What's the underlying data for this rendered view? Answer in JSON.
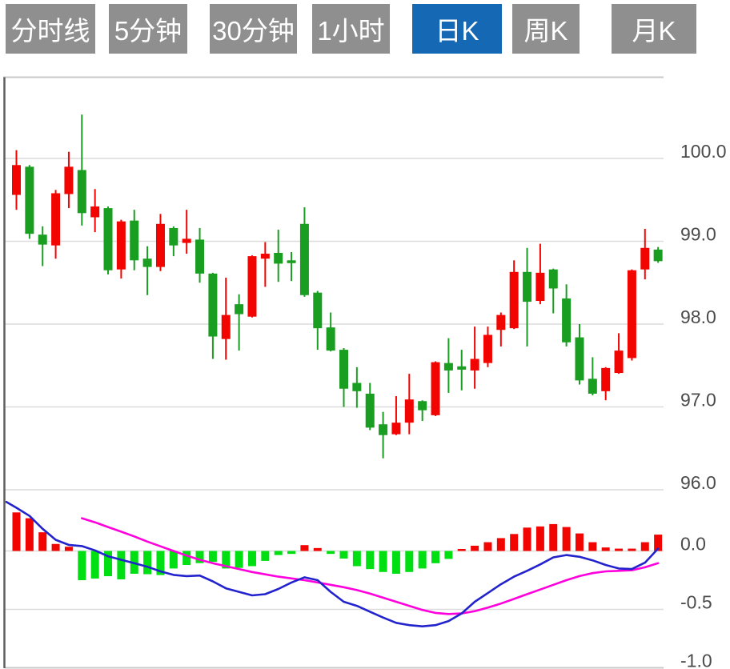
{
  "toolbar": {
    "tabs": [
      {
        "label": "分时线",
        "active": false
      },
      {
        "label": "5分钟",
        "active": false
      },
      {
        "label": "30分钟",
        "active": false
      },
      {
        "label": "1小时",
        "active": false
      },
      {
        "label": "日K",
        "active": true
      },
      {
        "label": "周K",
        "active": false
      },
      {
        "label": "月K",
        "active": false
      }
    ]
  },
  "colors": {
    "up_red": "#f20400",
    "down_green": "#1a9e21",
    "macd_green": "#00df12",
    "dif_blue": "#2323cd",
    "dea_magenta": "#ff00dd",
    "grid": "#dcdcdc",
    "border": "#c9c9c9",
    "spine": "#5e5e5e",
    "axis_label": "#4b4b4b",
    "tab_gray": "#8f8f8f",
    "tab_active_blue": "#1568b3"
  },
  "chart_data": {
    "type": "candlestick+macd",
    "title": "",
    "legend_position": "none",
    "grid": true,
    "price_axis": {
      "side": "right",
      "ticks": [
        100.0,
        99.0,
        98.0,
        97.0,
        96.0
      ],
      "labels": [
        "100.0",
        "99.0",
        "98.0",
        "97.0",
        "96.0"
      ],
      "range": [
        95.9,
        100.9
      ]
    },
    "macd_axis": {
      "side": "right",
      "ticks": [
        0.0,
        -0.5,
        -1.0
      ],
      "labels": [
        "0.0",
        "-0.5",
        "-1.0"
      ],
      "range": [
        -1.0,
        0.62
      ]
    },
    "candles_ohlc": [
      [
        99.56,
        100.1,
        99.38,
        99.92
      ],
      [
        99.9,
        99.92,
        99.03,
        99.09
      ],
      [
        99.08,
        99.18,
        98.7,
        98.96
      ],
      [
        98.95,
        99.62,
        98.79,
        99.58
      ],
      [
        99.57,
        100.08,
        99.4,
        99.9
      ],
      [
        99.86,
        100.53,
        99.19,
        99.34
      ],
      [
        99.29,
        99.63,
        99.11,
        99.42
      ],
      [
        99.4,
        99.42,
        98.6,
        98.65
      ],
      [
        98.66,
        99.26,
        98.55,
        99.24
      ],
      [
        99.25,
        99.38,
        98.65,
        98.77
      ],
      [
        98.79,
        98.94,
        98.35,
        98.69
      ],
      [
        98.69,
        99.33,
        98.64,
        99.21
      ],
      [
        99.16,
        99.18,
        98.82,
        98.95
      ],
      [
        98.98,
        99.38,
        98.85,
        99.03
      ],
      [
        99.02,
        99.16,
        98.5,
        98.61
      ],
      [
        98.61,
        98.62,
        97.58,
        97.85
      ],
      [
        97.82,
        98.56,
        97.57,
        98.11
      ],
      [
        98.24,
        98.36,
        97.68,
        98.12
      ],
      [
        98.09,
        98.83,
        98.08,
        98.82
      ],
      [
        98.79,
        98.99,
        98.45,
        98.85
      ],
      [
        98.86,
        99.14,
        98.51,
        98.73
      ],
      [
        98.77,
        98.87,
        98.52,
        98.75
      ],
      [
        99.21,
        99.41,
        98.33,
        98.35
      ],
      [
        98.38,
        98.4,
        97.69,
        97.95
      ],
      [
        97.96,
        98.14,
        97.67,
        97.68
      ],
      [
        97.69,
        97.71,
        97.0,
        97.22
      ],
      [
        97.29,
        97.48,
        96.99,
        97.19
      ],
      [
        97.16,
        97.29,
        96.72,
        96.75
      ],
      [
        96.79,
        96.94,
        96.38,
        96.66
      ],
      [
        96.67,
        97.13,
        96.66,
        96.81
      ],
      [
        96.81,
        97.4,
        96.67,
        97.09
      ],
      [
        97.07,
        97.08,
        96.83,
        96.96
      ],
      [
        96.9,
        97.55,
        96.89,
        97.54
      ],
      [
        97.53,
        97.83,
        97.17,
        97.44
      ],
      [
        97.49,
        97.69,
        97.2,
        97.45
      ],
      [
        97.44,
        97.97,
        97.22,
        97.58
      ],
      [
        97.53,
        97.97,
        97.48,
        97.87
      ],
      [
        97.93,
        98.14,
        97.73,
        98.11
      ],
      [
        97.95,
        98.77,
        97.94,
        98.63
      ],
      [
        98.63,
        98.92,
        97.73,
        98.27
      ],
      [
        98.28,
        98.97,
        98.24,
        98.62
      ],
      [
        98.66,
        98.67,
        98.13,
        98.43
      ],
      [
        98.31,
        98.48,
        97.73,
        97.78
      ],
      [
        97.84,
        98.0,
        97.27,
        97.32
      ],
      [
        97.34,
        97.6,
        97.14,
        97.16
      ],
      [
        97.19,
        97.48,
        97.08,
        97.47
      ],
      [
        97.41,
        97.89,
        97.4,
        97.68
      ],
      [
        97.59,
        98.66,
        97.56,
        98.65
      ],
      [
        98.66,
        99.15,
        98.54,
        98.92
      ],
      [
        98.9,
        98.93,
        98.74,
        98.76
      ]
    ],
    "macd": {
      "histogram": [
        0.33,
        0.28,
        0.16,
        0.06,
        0.036,
        -0.25,
        -0.236,
        -0.216,
        -0.243,
        -0.195,
        -0.199,
        -0.206,
        -0.15,
        -0.12,
        -0.104,
        -0.093,
        -0.15,
        -0.145,
        -0.13,
        -0.085,
        -0.035,
        -0.025,
        0.05,
        0.025,
        -0.025,
        -0.065,
        -0.13,
        -0.155,
        -0.18,
        -0.195,
        -0.18,
        -0.15,
        -0.105,
        -0.068,
        0.015,
        0.045,
        0.075,
        0.11,
        0.145,
        0.2,
        0.21,
        0.23,
        0.205,
        0.15,
        0.075,
        0.03,
        0.02,
        0.02,
        0.075,
        0.14
      ],
      "dif_lead": 0.42,
      "dif": [
        0.37,
        0.3,
        0.19,
        0.095,
        0.052,
        0.042,
        0.005,
        -0.045,
        -0.075,
        -0.105,
        -0.135,
        -0.175,
        -0.205,
        -0.215,
        -0.21,
        -0.26,
        -0.32,
        -0.35,
        -0.38,
        -0.37,
        -0.325,
        -0.27,
        -0.225,
        -0.25,
        -0.35,
        -0.435,
        -0.47,
        -0.52,
        -0.57,
        -0.615,
        -0.635,
        -0.645,
        -0.635,
        -0.6,
        -0.535,
        -0.435,
        -0.36,
        -0.285,
        -0.22,
        -0.17,
        -0.115,
        -0.055,
        -0.035,
        -0.05,
        -0.08,
        -0.12,
        -0.15,
        -0.155,
        -0.1,
        0.02
      ],
      "dea": [
        null,
        null,
        null,
        null,
        null,
        0.28,
        0.245,
        0.205,
        0.165,
        0.125,
        0.08,
        0.04,
        0.0,
        -0.04,
        -0.075,
        -0.105,
        -0.13,
        -0.155,
        -0.18,
        -0.2,
        -0.22,
        -0.235,
        -0.25,
        -0.27,
        -0.29,
        -0.31,
        -0.335,
        -0.365,
        -0.4,
        -0.435,
        -0.47,
        -0.505,
        -0.53,
        -0.54,
        -0.535,
        -0.515,
        -0.485,
        -0.45,
        -0.41,
        -0.37,
        -0.33,
        -0.29,
        -0.25,
        -0.215,
        -0.19,
        -0.175,
        -0.17,
        -0.165,
        -0.14,
        -0.105
      ]
    }
  }
}
